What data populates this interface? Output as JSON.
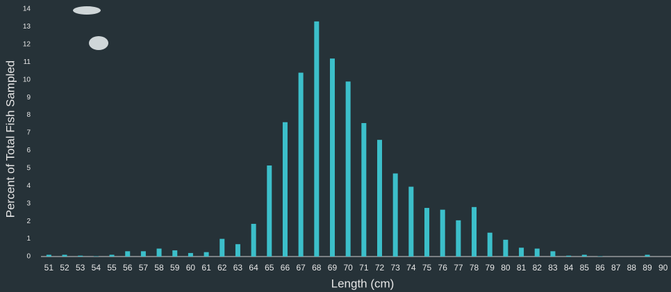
{
  "chart_data": {
    "type": "bar",
    "x_label": "Length (cm)",
    "y_label": "Percent of Total Fish Sampled",
    "categories": [
      "51",
      "52",
      "53",
      "54",
      "55",
      "56",
      "57",
      "58",
      "59",
      "60",
      "61",
      "62",
      "63",
      "64",
      "65",
      "66",
      "67",
      "68",
      "69",
      "70",
      "71",
      "72",
      "73",
      "74",
      "75",
      "76",
      "77",
      "78",
      "79",
      "80",
      "81",
      "82",
      "83",
      "84",
      "85",
      "86",
      "87",
      "88",
      "89",
      "90"
    ],
    "values": [
      0.1,
      0.1,
      0.05,
      0.02,
      0.1,
      0.3,
      0.3,
      0.45,
      0.35,
      0.2,
      0.25,
      1.0,
      0.7,
      1.85,
      5.15,
      7.6,
      10.4,
      13.3,
      11.2,
      9.9,
      7.55,
      6.6,
      4.7,
      3.95,
      2.75,
      2.65,
      2.05,
      2.8,
      1.35,
      0.95,
      0.5,
      0.45,
      0.3,
      0.05,
      0.1,
      0.02,
      0,
      0,
      0.1,
      0
    ],
    "color": "#3cbfca",
    "ylim": [
      0,
      14
    ],
    "yticks": [
      0,
      1,
      2,
      3,
      4,
      5,
      6,
      7,
      8,
      9,
      10,
      11,
      12,
      13,
      14
    ],
    "grid": false
  }
}
